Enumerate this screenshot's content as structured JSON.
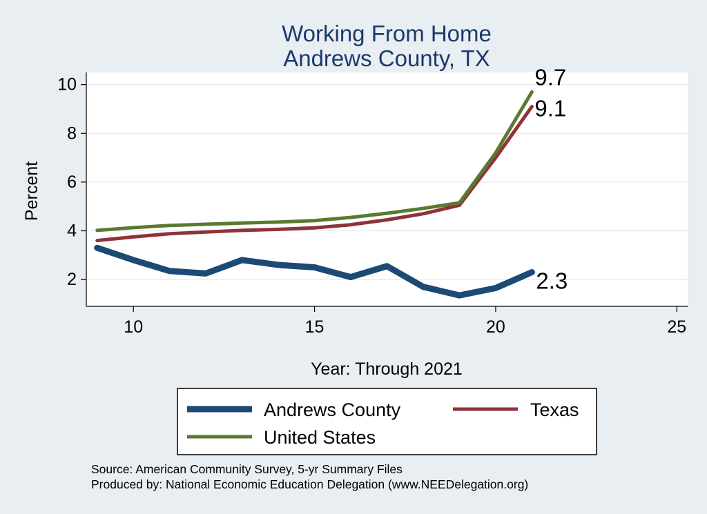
{
  "colors": {
    "background": "#e9eef3",
    "plot_background": "#ffffff",
    "title": "#1a3a6b",
    "andrews": "#1c4a75",
    "texas": "#8f3338",
    "us": "#5a7a30"
  },
  "chart_data": {
    "type": "line",
    "title": [
      "Working From Home",
      "Andrews County, TX"
    ],
    "xlabel": "Year: Through 2021",
    "ylabel": "Percent",
    "xlim": [
      8.7,
      25.3
    ],
    "ylim": [
      0.9,
      10.5
    ],
    "xticks": [
      10,
      15,
      20,
      25
    ],
    "yticks": [
      2,
      4,
      6,
      8,
      10
    ],
    "grid": true,
    "x": [
      9,
      10,
      11,
      12,
      13,
      14,
      15,
      16,
      17,
      18,
      19,
      20,
      21
    ],
    "series": [
      {
        "name": "Andrews County",
        "color": "#1c4a75",
        "values": [
          3.3,
          2.8,
          2.35,
          2.25,
          2.8,
          2.6,
          2.5,
          2.1,
          2.55,
          1.7,
          1.35,
          1.65,
          2.3
        ],
        "end_label": "2.3"
      },
      {
        "name": "Texas",
        "color": "#8f3338",
        "values": [
          3.6,
          3.75,
          3.88,
          3.95,
          4.02,
          4.06,
          4.12,
          4.25,
          4.45,
          4.7,
          5.05,
          7.0,
          9.1
        ],
        "end_label": "9.1"
      },
      {
        "name": "United States",
        "color": "#5a7a30",
        "values": [
          4.02,
          4.13,
          4.22,
          4.27,
          4.32,
          4.36,
          4.42,
          4.55,
          4.72,
          4.92,
          5.15,
          7.2,
          9.7
        ],
        "end_label": "9.7"
      }
    ],
    "legend": {
      "placement": "bottom",
      "entries": [
        "Andrews County",
        "Texas",
        "United States"
      ]
    }
  },
  "footer": {
    "source": "Source: American Community Survey, 5-yr Summary Files",
    "produced_by": "Produced by: National Economic Education Delegation (www.NEEDelegation.org)"
  }
}
